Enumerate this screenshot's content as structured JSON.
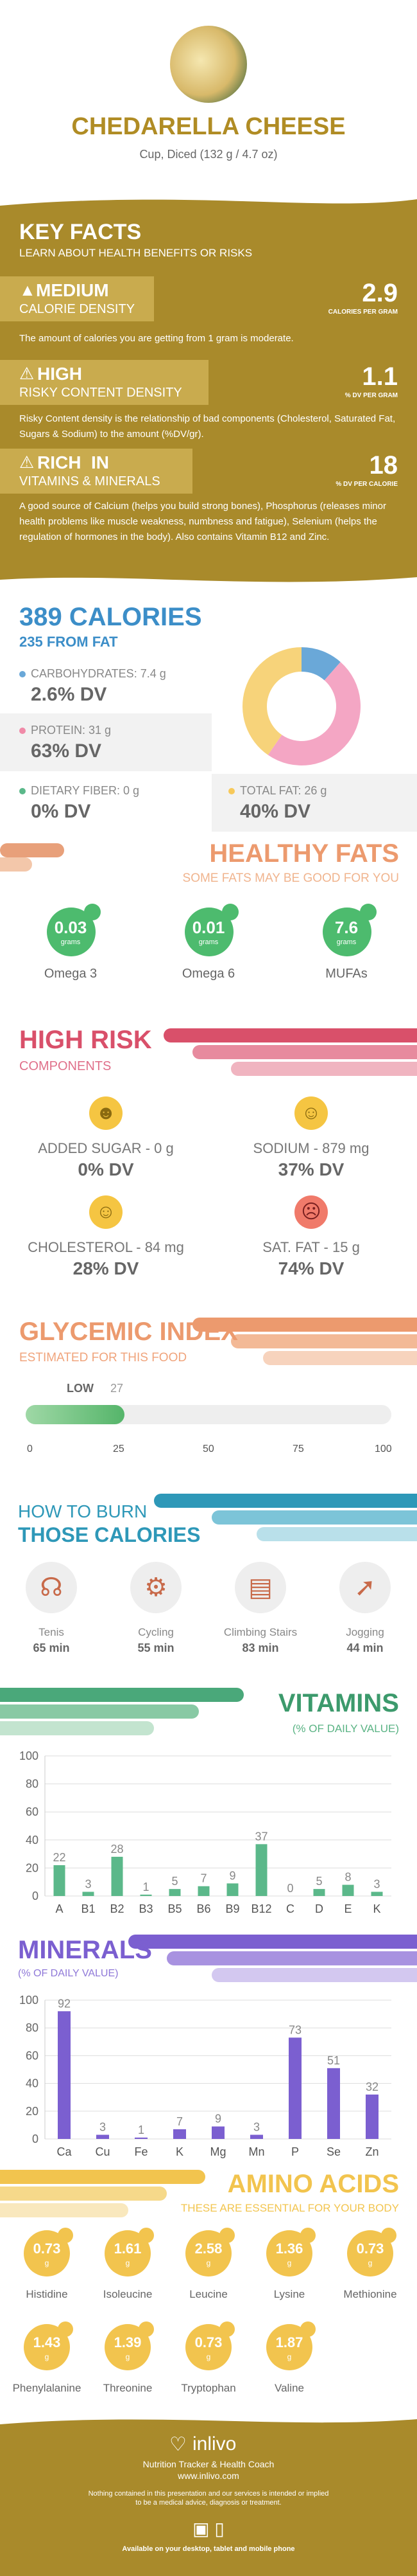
{
  "header": {
    "title": "CHEDARELLA CHEESE",
    "serving": "Cup, Diced (132 g / 4.7 oz)"
  },
  "key_facts": {
    "title": "KEY FACTS",
    "subtitle": "LEARN ABOUT HEALTH BENEFITS OR RISKS",
    "items": [
      {
        "level": "MEDIUM",
        "label": "CALORIE DENSITY",
        "value": "2.9",
        "unit": "CALORIES PER GRAM",
        "desc": "The amount of calories you are getting from 1 gram is moderate.",
        "icon": "flame-icon"
      },
      {
        "level": "HIGH",
        "label": "RISKY CONTENT DENSITY",
        "value": "1.1",
        "unit": "% DV PER GRAM",
        "desc": "Risky Content density is the relationship of bad components (Cholesterol, Saturated Fat, Sugars & Sodium) to the amount (%DV/gr).",
        "icon": "warning-icon"
      },
      {
        "level": "RICH  IN",
        "label": "VITAMINS & MINERALS",
        "value": "18",
        "unit": "% DV PER CALORIE",
        "desc": "A good source of Calcium (helps you build strong bones), Phosphorus (releases minor health problems like muscle weakness, numbness and fatigue), Selenium (helps the regulation of hormones in the body). Also contains Vitamin B12 and Zinc.",
        "icon": "warning-icon"
      }
    ]
  },
  "calories": {
    "title": "389 CALORIES",
    "subtitle": "235 FROM FAT",
    "carbs_label": "CARBOHYDRATES: 7.4 g",
    "carbs_dv": "2.6% DV",
    "protein_label": "PROTEIN: 31 g",
    "protein_dv": "63% DV",
    "fiber_label": "DIETARY FIBER: 0 g",
    "fiber_dv": "0% DV",
    "fat_label": "TOTAL FAT: 26 g",
    "fat_dv": "40% DV",
    "colors": {
      "carbs": "#6aa8d8",
      "protein": "#f4a6c4",
      "fiber": "#5bb88a",
      "fat": "#f7d37a"
    }
  },
  "chart_data": [
    {
      "type": "pie",
      "title": "",
      "categories": [
        "CARBOHYDRATES",
        "PROTEIN",
        "TOTAL FAT"
      ],
      "values": [
        7.4,
        31,
        26
      ]
    },
    {
      "type": "bar",
      "title": "VITAMINS",
      "subtitle": "(% OF DAILY VALUE)",
      "categories": [
        "A",
        "B1",
        "B2",
        "B3",
        "B5",
        "B6",
        "B9",
        "B12",
        "C",
        "D",
        "E",
        "K"
      ],
      "values": [
        22,
        3,
        28,
        1,
        5,
        7,
        9,
        37,
        0,
        5,
        8,
        3
      ],
      "ylim": [
        0,
        100
      ],
      "yticks": [
        0,
        20,
        40,
        60,
        80,
        100
      ],
      "grid": true
    },
    {
      "type": "bar",
      "title": "MINERALS",
      "subtitle": "(% OF DAILY VALUE)",
      "categories": [
        "Ca",
        "Cu",
        "Fe",
        "K",
        "Mg",
        "Mn",
        "P",
        "Se",
        "Zn"
      ],
      "values": [
        92,
        3,
        1,
        7,
        9,
        3,
        73,
        51,
        32
      ],
      "ylim": [
        0,
        100
      ],
      "yticks": [
        0,
        20,
        40,
        60,
        80,
        100
      ],
      "grid": true
    }
  ],
  "healthy_fats": {
    "title": "HEALTHY FATS",
    "subtitle": "SOME FATS MAY BE GOOD FOR YOU",
    "unit": "grams",
    "items": [
      {
        "value": "0.03",
        "name": "Omega 3"
      },
      {
        "value": "0.01",
        "name": "Omega 6"
      },
      {
        "value": "7.6",
        "name": "MUFAs"
      }
    ]
  },
  "high_risk": {
    "title": "HIGH RISK",
    "subtitle": "COMPONENTS",
    "items": [
      {
        "label": "ADDED SUGAR - 0 g",
        "dv": "0% DV",
        "icon": "grin-face-icon",
        "color": "#f5c542"
      },
      {
        "label": "SODIUM - 879 mg",
        "dv": "37% DV",
        "icon": "smile-face-icon",
        "color": "#f5c542"
      },
      {
        "label": "CHOLESTEROL - 84 mg",
        "dv": "28% DV",
        "icon": "smile-face-icon",
        "color": "#f5c542"
      },
      {
        "label": "SAT. FAT - 15 g",
        "dv": "74% DV",
        "icon": "sad-face-icon",
        "color": "#f07a6a"
      }
    ]
  },
  "glycemic": {
    "title": "GLYCEMIC INDEX",
    "subtitle": "ESTIMATED FOR THIS FOOD",
    "level": "LOW",
    "value": "27",
    "fill": 0.27,
    "ticks": [
      "0",
      "25",
      "50",
      "75",
      "100"
    ]
  },
  "burn": {
    "title1": "HOW TO BURN",
    "title2": "THOSE CALORIES",
    "items": [
      {
        "name": "Tenis",
        "time": "65 min",
        "icon": "tennis-icon"
      },
      {
        "name": "Cycling",
        "time": "55 min",
        "icon": "cycling-icon"
      },
      {
        "name": "Climbing Stairs",
        "time": "83 min",
        "icon": "stairs-icon"
      },
      {
        "name": "Jogging",
        "time": "44 min",
        "icon": "jogging-icon"
      }
    ]
  },
  "amino": {
    "title": "AMINO ACIDS",
    "subtitle": "THESE ARE ESSENTIAL FOR YOUR BODY",
    "unit": "g",
    "items": [
      {
        "value": "0.73",
        "name": "Histidine"
      },
      {
        "value": "1.61",
        "name": "Isoleucine"
      },
      {
        "value": "2.58",
        "name": "Leucine"
      },
      {
        "value": "1.36",
        "name": "Lysine"
      },
      {
        "value": "0.73",
        "name": "Methionine"
      },
      {
        "value": "1.43",
        "name": "Phenylalanine"
      },
      {
        "value": "1.39",
        "name": "Threonine"
      },
      {
        "value": "0.73",
        "name": "Tryptophan"
      },
      {
        "value": "1.87",
        "name": "Valine"
      }
    ]
  },
  "footer": {
    "brand": "inlivo",
    "tagline": "Nutrition Tracker & Health Coach",
    "url": "www.inlivo.com",
    "disclaimer1": "Nothing contained in this presentation and our services is intended or implied",
    "disclaimer2": "to be a medical advice, diagnosis or treatment.",
    "available": "Available on your desktop, tablet and mobile phone"
  }
}
